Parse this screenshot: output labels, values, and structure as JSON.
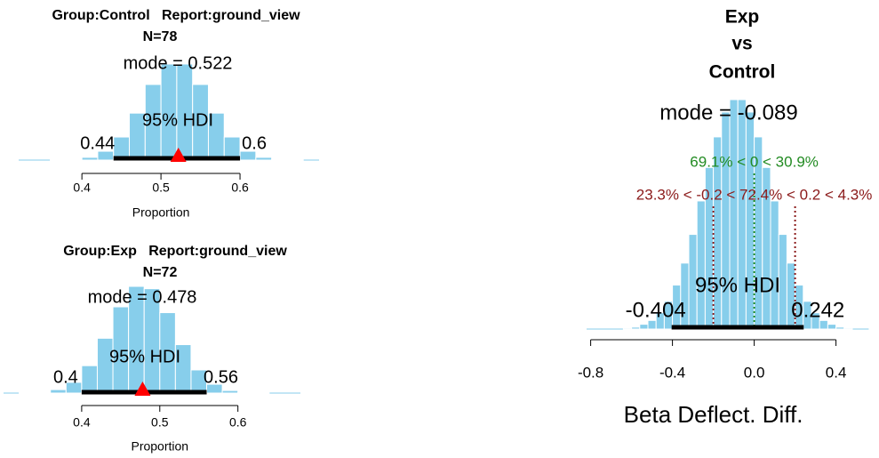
{
  "chart_data": [
    {
      "type": "histogram",
      "title": "Group:Control   Report:ground_view",
      "subtitle": "N=78",
      "x_label": "Proportion",
      "bins": [
        0.32,
        0.34,
        0.36,
        0.38,
        0.4,
        0.42,
        0.44,
        0.46,
        0.48,
        0.5,
        0.52,
        0.54,
        0.56,
        0.58,
        0.6,
        0.62,
        0.64,
        0.66,
        0.68,
        0.7,
        0.72
      ],
      "values": [
        0.0,
        0.0,
        0.01,
        0.06,
        0.27,
        0.87,
        2.27,
        4.62,
        7.44,
        9.45,
        9.45,
        7.44,
        4.62,
        2.27,
        0.87,
        0.27,
        0.06,
        0.01,
        0.0,
        0.0
      ],
      "color": "#87ceeb",
      "xlim": [
        0.32,
        0.7
      ],
      "xticks": [
        0.4,
        0.5,
        0.6
      ],
      "mode": 0.522,
      "mode_label": "mode = 0.522",
      "hdi_label": "95% HDI",
      "hdi": [
        0.44,
        0.6
      ]
    },
    {
      "type": "histogram",
      "title": "Group:Exp   Report:ground_view",
      "subtitle": "N=72",
      "x_label": "Proportion",
      "bins": [
        0.3,
        0.32,
        0.34,
        0.36,
        0.38,
        0.4,
        0.42,
        0.44,
        0.46,
        0.48,
        0.5,
        0.52,
        0.54,
        0.56,
        0.58,
        0.6,
        0.62,
        0.64,
        0.66
      ],
      "values": [
        0.0,
        0.01,
        0.07,
        0.31,
        0.96,
        2.45,
        4.9,
        7.71,
        9.54,
        9.33,
        7.19,
        4.33,
        2.07,
        0.79,
        0.23,
        0.05,
        0.01,
        0.0
      ],
      "color": "#87ceeb",
      "xlim": [
        0.3,
        0.68
      ],
      "xticks": [
        0.4,
        0.5,
        0.6
      ],
      "mode": 0.478,
      "mode_label": "mode = 0.478",
      "hdi_label": "95% HDI",
      "hdi": [
        0.4,
        0.56
      ]
    },
    {
      "type": "histogram",
      "title": [
        "Exp",
        "vs",
        "Control"
      ],
      "x_label": "Beta Deflect. Diff.",
      "bins": [
        -0.72,
        -0.68,
        -0.64,
        -0.6,
        -0.56,
        -0.52,
        -0.48,
        -0.44,
        -0.4,
        -0.36,
        -0.32,
        -0.28,
        -0.24,
        -0.2,
        -0.16,
        -0.12,
        -0.08,
        -0.04,
        0.0,
        0.04,
        0.08,
        0.12,
        0.16,
        0.2,
        0.24,
        0.28,
        0.32,
        0.36,
        0.4,
        0.44,
        0.48,
        0.52,
        0.56
      ],
      "values": [
        0.0,
        0.0,
        0.01,
        0.02,
        0.05,
        0.09,
        0.17,
        0.29,
        0.46,
        0.69,
        0.99,
        1.34,
        1.69,
        2.01,
        2.27,
        2.4,
        2.4,
        2.27,
        2.01,
        1.69,
        1.34,
        0.99,
        0.69,
        0.46,
        0.29,
        0.17,
        0.09,
        0.05,
        0.02,
        0.01,
        0.0,
        0.0
      ],
      "color": "#87ceeb",
      "xlim": [
        -0.82,
        0.56
      ],
      "xticks": [
        -0.8,
        -0.4,
        {
          "value": 0,
          "label": "0.0"
        },
        0.4
      ],
      "mode_label": "mode = -0.089",
      "hdi_label": "95% HDI",
      "hdi": [
        -0.404,
        0.242
      ],
      "comp_value": 0,
      "comp_label": "69.1% < 0 < 30.9%",
      "comp_color": "#228b22",
      "rope": [
        -0.2,
        0.2
      ],
      "rope_label": "23.3% < -0.2 < 72.4% < 0.2 < 4.3%",
      "rope_color": "#8b1a1a"
    }
  ]
}
